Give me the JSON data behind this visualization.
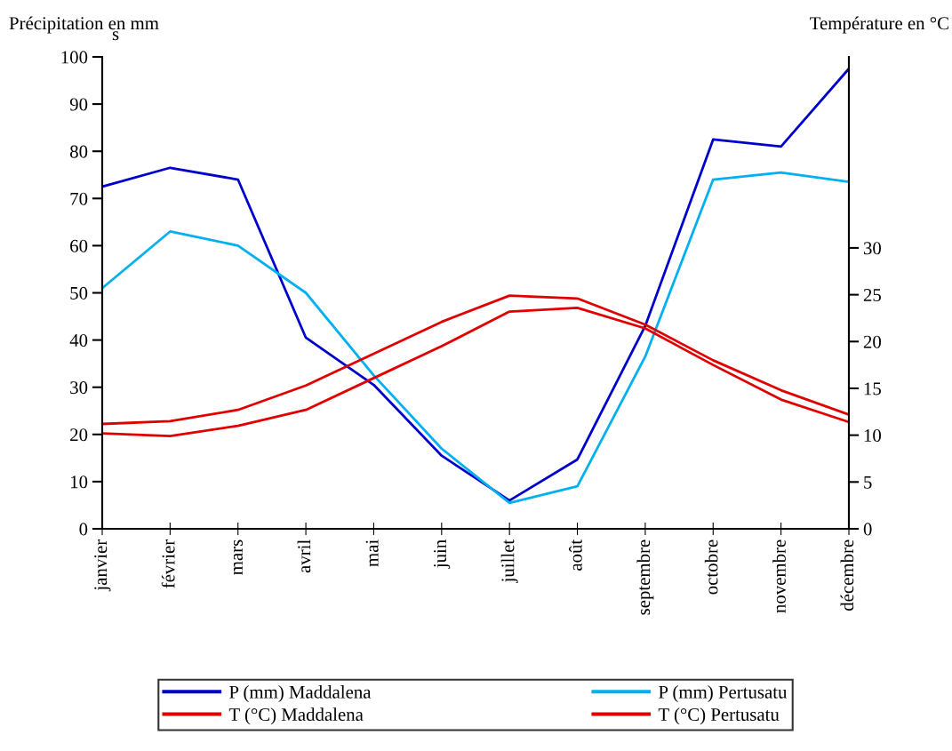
{
  "chart_data": {
    "type": "line",
    "ylabel": "Précipitation en mm",
    "y2label": "Température en °C",
    "annotations": [
      "s"
    ],
    "categories": [
      "janvier",
      "février",
      "mars",
      "avril",
      "mai",
      "juin",
      "juillet",
      "août",
      "septembre",
      "octobre",
      "novembre",
      "décembre"
    ],
    "series": [
      {
        "name": "P (mm) Maddalena",
        "color": "#0000cc",
        "values": [
          72.5,
          76.5,
          74,
          40.5,
          30.5,
          15.5,
          6,
          14.7,
          43,
          82.5,
          81,
          97.5
        ]
      },
      {
        "name": "P (mm) Pertusatu",
        "color": "#00b0f0",
        "values": [
          51,
          63,
          60,
          50,
          32.5,
          17,
          5.5,
          9,
          36.5,
          74,
          75.5,
          73.5
        ]
      },
      {
        "name": "T (°C) Maddalena",
        "color": "#e00000",
        "axis": "y2",
        "values": [
          10.2,
          9.9,
          11.0,
          12.7,
          16.1,
          19.5,
          23.2,
          23.6,
          21.4,
          17.5,
          13.8,
          11.4
        ]
      },
      {
        "name": "T (°C) Pertusatu",
        "color": "#e00000",
        "axis": "y2",
        "values": [
          11.2,
          11.5,
          12.7,
          15.3,
          18.7,
          22.1,
          24.9,
          24.6,
          21.8,
          18.0,
          14.8,
          12.2
        ]
      }
    ],
    "ylim": [
      0,
      100
    ],
    "yticks": [
      0,
      10,
      20,
      30,
      40,
      50,
      60,
      70,
      80,
      90,
      100
    ],
    "y2lim": [
      0,
      50.4
    ],
    "y2ticks": [
      0,
      5,
      10,
      15,
      20,
      25,
      30
    ],
    "grid": false,
    "legend": "bottom",
    "marker": "none",
    "line_style": "solid"
  }
}
